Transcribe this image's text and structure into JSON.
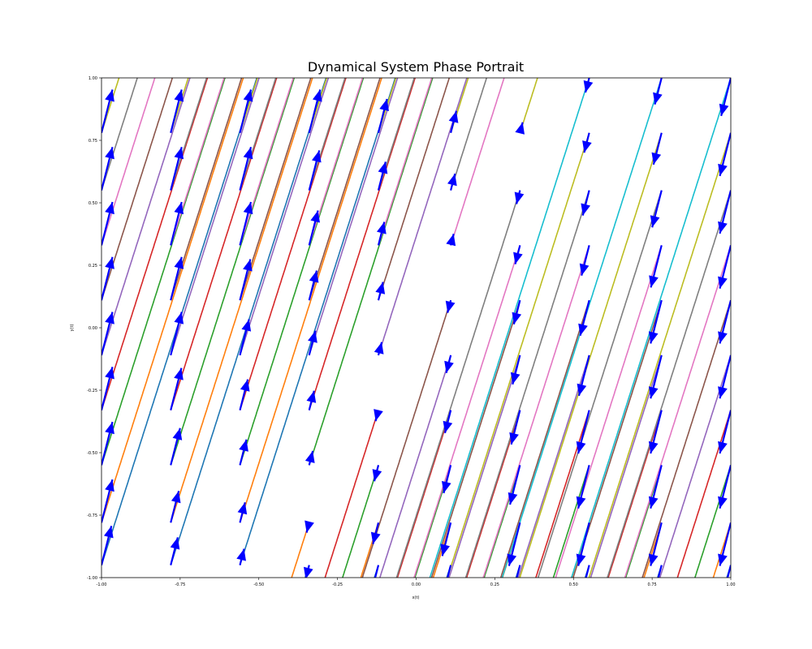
{
  "chart_data": {
    "type": "line",
    "title": "Dynamical System Phase Portrait",
    "xlabel": "x(t)",
    "ylabel": "y(t)",
    "xlim": [
      -1.0,
      1.0
    ],
    "ylim": [
      -1.0,
      1.0
    ],
    "xticks": [
      "-1.00",
      "-0.75",
      "-0.50",
      "-0.25",
      "0.00",
      "0.25",
      "0.50",
      "0.75",
      "1.00"
    ],
    "yticks": [
      "-1.00",
      "-0.75",
      "-0.50",
      "-0.25",
      "0.00",
      "0.25",
      "0.50",
      "0.75",
      "1.00"
    ],
    "grid": false,
    "legend": "none",
    "arrow_color": "#0000ff",
    "attractor": [
      -0.45,
      -1.0
    ],
    "repeller_exit": [
      0.45,
      1.0
    ],
    "series": [
      {
        "color": "#1f77b4",
        "start_y": -0.95
      },
      {
        "color": "#ff7f0e",
        "start_y": -0.78
      },
      {
        "color": "#2ca02c",
        "start_y": -0.55
      },
      {
        "color": "#d62728",
        "start_y": -0.33
      },
      {
        "color": "#9467bd",
        "start_y": -0.11
      },
      {
        "color": "#8c564b",
        "start_y": 0.11
      },
      {
        "color": "#e377c2",
        "start_y": 0.33
      },
      {
        "color": "#7f7f7f",
        "start_y": 0.55
      },
      {
        "color": "#bcbd22",
        "start_y": 0.78
      },
      {
        "color": "#17becf",
        "start_y": 1.0
      }
    ]
  }
}
